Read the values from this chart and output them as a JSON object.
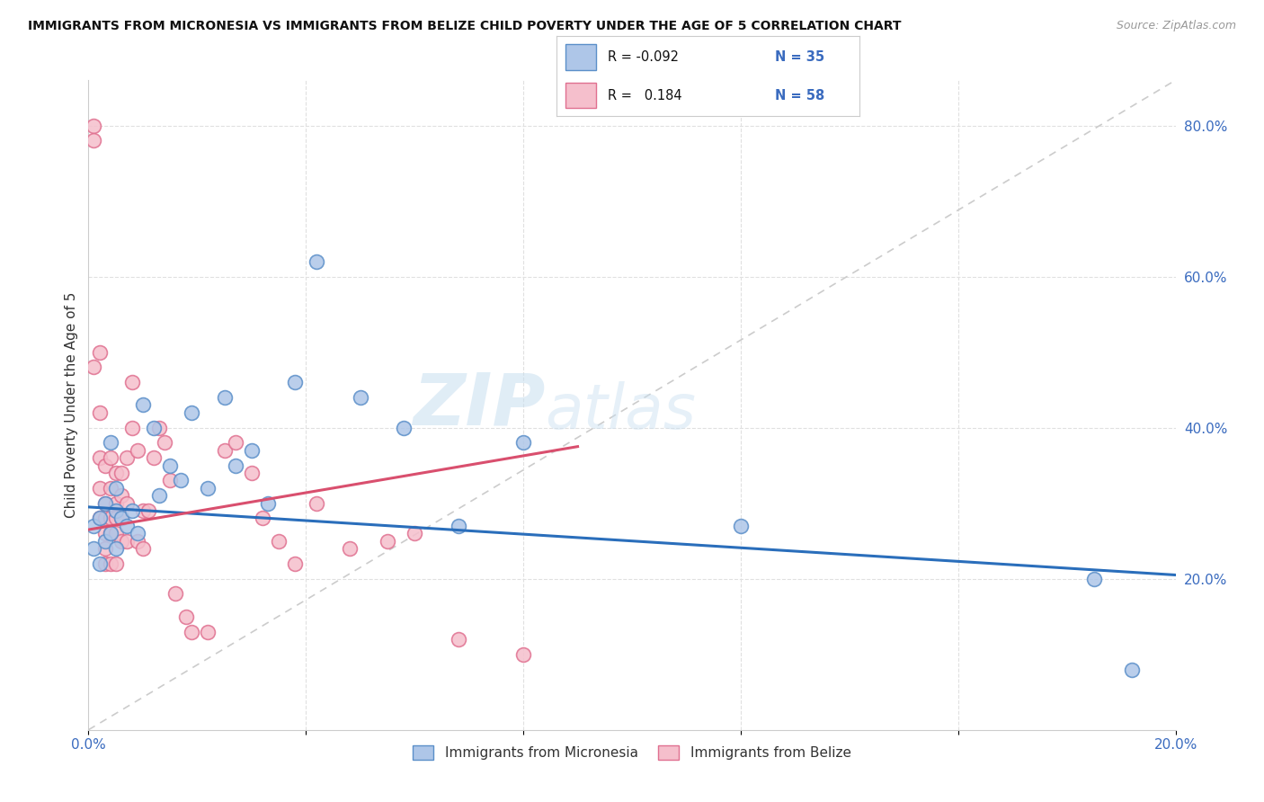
{
  "title": "IMMIGRANTS FROM MICRONESIA VS IMMIGRANTS FROM BELIZE CHILD POVERTY UNDER THE AGE OF 5 CORRELATION CHART",
  "source": "Source: ZipAtlas.com",
  "ylabel": "Child Poverty Under the Age of 5",
  "xmin": 0.0,
  "xmax": 0.2,
  "ymin": 0.0,
  "ymax": 0.86,
  "micronesia_color": "#aec6e8",
  "micronesia_edge": "#5b8fc9",
  "belize_color": "#f5bfcc",
  "belize_edge": "#e07090",
  "micronesia_line_color": "#2a6ebb",
  "belize_line_color": "#d94f6e",
  "diagonal_color": "#cccccc",
  "grid_color": "#e0e0e0",
  "micronesia_R": "-0.092",
  "micronesia_N": "35",
  "belize_R": "0.184",
  "belize_N": "58",
  "legend_label_micronesia": "Immigrants from Micronesia",
  "legend_label_belize": "Immigrants from Belize",
  "watermark_zip": "ZIP",
  "watermark_atlas": "atlas",
  "micronesia_x": [
    0.001,
    0.001,
    0.002,
    0.002,
    0.003,
    0.003,
    0.004,
    0.004,
    0.005,
    0.005,
    0.005,
    0.006,
    0.007,
    0.008,
    0.009,
    0.01,
    0.012,
    0.013,
    0.015,
    0.017,
    0.019,
    0.022,
    0.025,
    0.027,
    0.03,
    0.033,
    0.038,
    0.042,
    0.05,
    0.058,
    0.068,
    0.08,
    0.12,
    0.185,
    0.192
  ],
  "micronesia_y": [
    0.24,
    0.27,
    0.22,
    0.28,
    0.25,
    0.3,
    0.26,
    0.38,
    0.24,
    0.29,
    0.32,
    0.28,
    0.27,
    0.29,
    0.26,
    0.43,
    0.4,
    0.31,
    0.35,
    0.33,
    0.42,
    0.32,
    0.44,
    0.35,
    0.37,
    0.3,
    0.46,
    0.62,
    0.44,
    0.4,
    0.27,
    0.38,
    0.27,
    0.2,
    0.08
  ],
  "belize_x": [
    0.001,
    0.001,
    0.001,
    0.002,
    0.002,
    0.002,
    0.002,
    0.002,
    0.003,
    0.003,
    0.003,
    0.003,
    0.003,
    0.003,
    0.004,
    0.004,
    0.004,
    0.004,
    0.004,
    0.005,
    0.005,
    0.005,
    0.005,
    0.005,
    0.006,
    0.006,
    0.006,
    0.006,
    0.007,
    0.007,
    0.007,
    0.008,
    0.008,
    0.009,
    0.009,
    0.01,
    0.01,
    0.011,
    0.012,
    0.013,
    0.014,
    0.015,
    0.016,
    0.018,
    0.019,
    0.022,
    0.025,
    0.027,
    0.03,
    0.032,
    0.035,
    0.038,
    0.042,
    0.048,
    0.055,
    0.06,
    0.068,
    0.08
  ],
  "belize_y": [
    0.8,
    0.78,
    0.48,
    0.42,
    0.36,
    0.32,
    0.28,
    0.5,
    0.3,
    0.28,
    0.26,
    0.24,
    0.22,
    0.35,
    0.36,
    0.32,
    0.28,
    0.26,
    0.22,
    0.34,
    0.3,
    0.28,
    0.26,
    0.22,
    0.34,
    0.31,
    0.28,
    0.25,
    0.36,
    0.3,
    0.25,
    0.46,
    0.4,
    0.37,
    0.25,
    0.29,
    0.24,
    0.29,
    0.36,
    0.4,
    0.38,
    0.33,
    0.18,
    0.15,
    0.13,
    0.13,
    0.37,
    0.38,
    0.34,
    0.28,
    0.25,
    0.22,
    0.3,
    0.24,
    0.25,
    0.26,
    0.12,
    0.1
  ],
  "micronesia_trend_x": [
    0.0,
    0.2
  ],
  "micronesia_trend_y": [
    0.295,
    0.205
  ],
  "belize_trend_x": [
    0.0,
    0.09
  ],
  "belize_trend_y": [
    0.265,
    0.375
  ]
}
